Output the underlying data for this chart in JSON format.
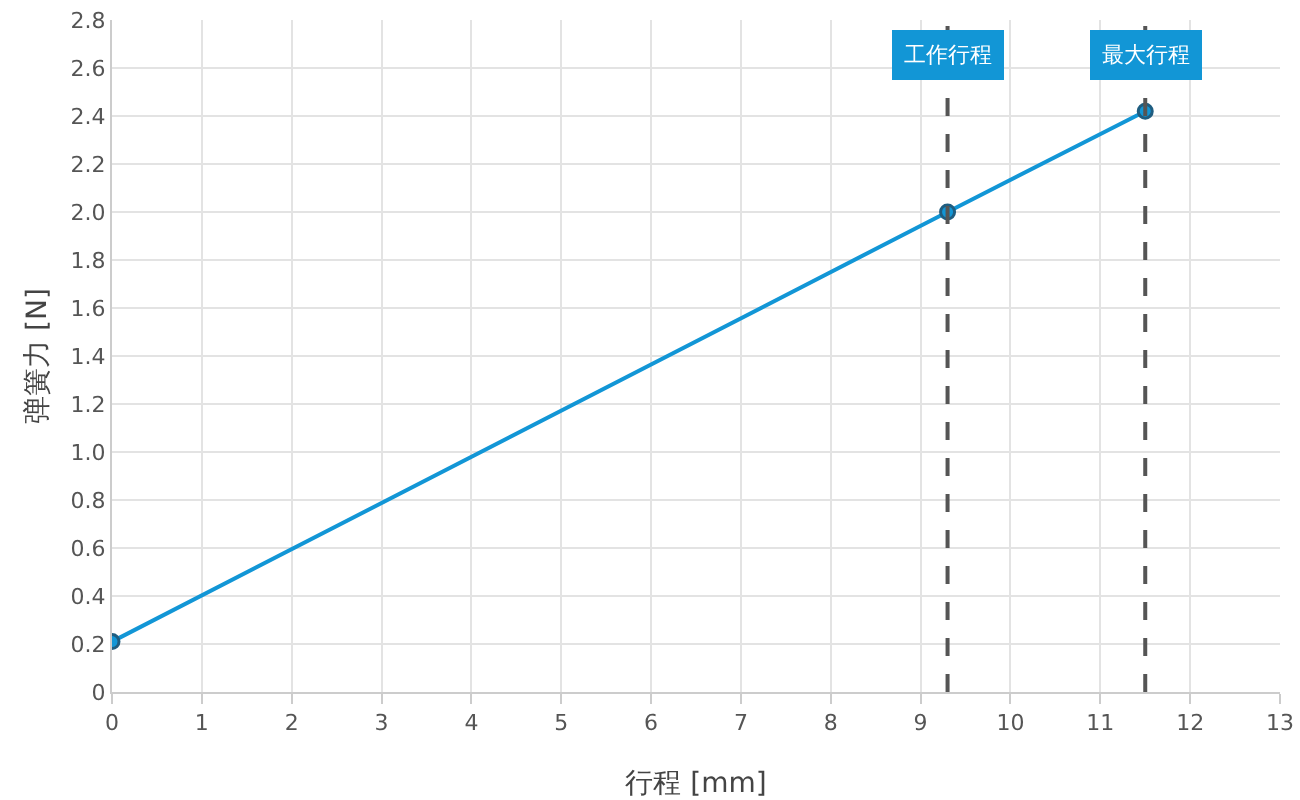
{
  "chart_data": {
    "type": "line",
    "xlabel": "行程 [mm]",
    "ylabel": "弹簧力 [N]",
    "x": [
      0,
      9.3,
      11.5
    ],
    "series": [
      {
        "color": "#1296d6",
        "values": [
          0.21,
          2.0,
          2.42
        ]
      }
    ],
    "xlim": [
      0,
      13
    ],
    "xticks": [
      0,
      1,
      2,
      3,
      4,
      5,
      6,
      7,
      8,
      9,
      10,
      11,
      12,
      13
    ],
    "ylim": [
      0,
      2.8
    ],
    "yticks": [
      {
        "value": 0,
        "label": "0"
      },
      {
        "value": 0.2,
        "label": "0.2"
      },
      {
        "value": 0.4,
        "label": "0.4"
      },
      {
        "value": 0.6,
        "label": "0.6"
      },
      {
        "value": 0.8,
        "label": "0.8"
      },
      {
        "value": 1.0,
        "label": "1.0"
      },
      {
        "value": 1.2,
        "label": "1.2"
      },
      {
        "value": 1.4,
        "label": "1.4"
      },
      {
        "value": 1.6,
        "label": "1.6"
      },
      {
        "value": 1.8,
        "label": "1.8"
      },
      {
        "value": 2.0,
        "label": "2.0"
      },
      {
        "value": 2.2,
        "label": "2.2"
      },
      {
        "value": 2.4,
        "label": "2.4"
      },
      {
        "value": 2.6,
        "label": "2.6"
      },
      {
        "value": 2.8,
        "label": "2.8"
      }
    ],
    "ref_lines": [
      {
        "axis": "x",
        "value": 9.3,
        "label": "工作行程",
        "color": "#555555",
        "line_style": "dashed"
      },
      {
        "axis": "x",
        "value": 11.5,
        "label": "最大行程",
        "color": "#555555",
        "line_style": "dashed"
      }
    ],
    "grid": true,
    "marker": "circle",
    "line_style": "solid"
  }
}
